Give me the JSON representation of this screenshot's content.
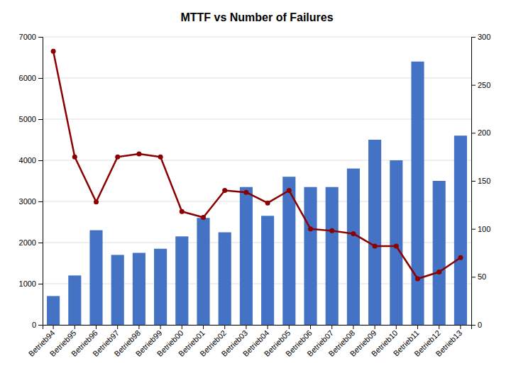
{
  "chart_data": {
    "type": "bar",
    "title": "MTTF vs Number of Failures",
    "categories": [
      "Betrieb94",
      "Betrieb95",
      "Betrieb96",
      "Betrieb97",
      "Betrieb98",
      "Betrieb99",
      "Betrieb00",
      "Betrieb01",
      "Betrieb02",
      "Betrieb03",
      "Betrieb04",
      "Betrieb05",
      "Betrieb06",
      "Betrieb07",
      "Betrieb08",
      "Betrieb09",
      "Betrieb10",
      "Betrieb11",
      "Betrieb12",
      "Betrieb13"
    ],
    "series": [
      {
        "type": "bar",
        "color": "#4472C4",
        "values": [
          700,
          1200,
          2300,
          1700,
          1750,
          1850,
          2150,
          2600,
          2250,
          3350,
          2650,
          3600,
          3350,
          3350,
          3800,
          4500,
          4000,
          6400,
          3500,
          4600
        ]
      },
      {
        "type": "line",
        "axis": "y2",
        "color": "#8B0000",
        "marker": "circle",
        "values": [
          285,
          175,
          128,
          175,
          178,
          175,
          118,
          112,
          140,
          138,
          127,
          140,
          100,
          98,
          95,
          82,
          82,
          48,
          55,
          70
        ]
      }
    ],
    "ylim": [
      0,
      7000
    ],
    "yticks": [
      0,
      1000,
      2000,
      3000,
      4000,
      5000,
      6000,
      7000
    ],
    "y2lim": [
      0,
      300
    ],
    "y2ticks": [
      0,
      50,
      100,
      150,
      200,
      250,
      300
    ],
    "grid": true
  }
}
